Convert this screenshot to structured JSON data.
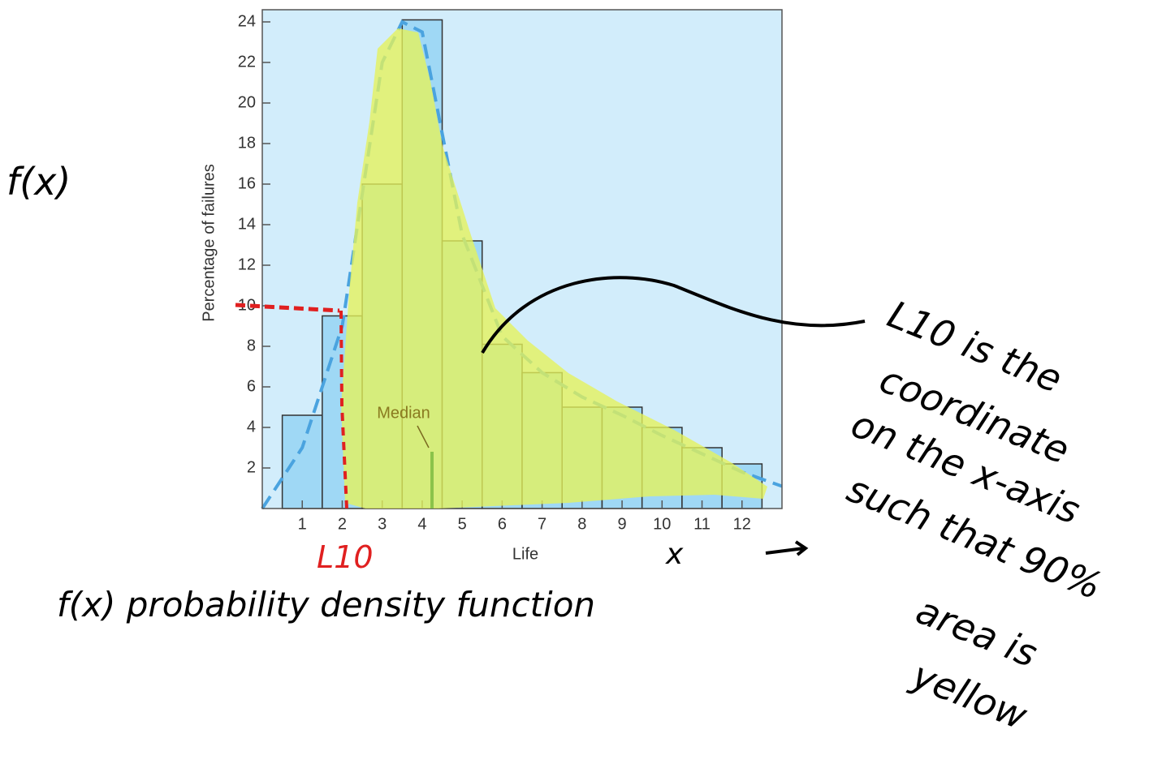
{
  "chart_data": {
    "type": "histogram",
    "xlabel": "Life",
    "ylabel": "Percentage of failures",
    "bins": [
      0.5,
      1.5,
      2.5,
      3.5,
      4.5,
      5.5,
      6.5,
      7.5,
      8.5,
      9.5,
      10.5,
      11.5,
      12.5
    ],
    "values": [
      4.6,
      9.5,
      16,
      24.1,
      13.2,
      8.1,
      6.7,
      5,
      5,
      4,
      3,
      2.2
    ],
    "color": "#9fd8f5",
    "edgecolor": "#333333",
    "background": "#d2edfb",
    "xlim": [
      0,
      13
    ],
    "ylim": [
      0,
      24.6
    ],
    "xticks": [
      1,
      2,
      3,
      4,
      5,
      6,
      7,
      8,
      9,
      10,
      11,
      12
    ],
    "yticks": [
      2,
      4,
      6,
      8,
      10,
      12,
      14,
      16,
      18,
      20,
      22,
      24
    ],
    "curve": {
      "x": [
        0,
        1,
        2,
        3,
        3.5,
        4,
        5,
        6,
        7,
        8,
        9,
        10,
        11,
        12,
        13
      ],
      "values": [
        0,
        3,
        9,
        22,
        24,
        23.5,
        13.5,
        8.5,
        6.7,
        5.5,
        4.6,
        3.6,
        2.7,
        1.8,
        1.1
      ],
      "color": "#4aa3df"
    },
    "median_label": "Median"
  },
  "handwriting": {
    "fx": "f(x)",
    "l10": "L10",
    "caption": "f(x) probability density function",
    "x_arrow": "x",
    "note": [
      "L10 is the",
      "coordinate",
      "on the x-axis",
      "such that 90%",
      "area is",
      "yellow"
    ]
  }
}
